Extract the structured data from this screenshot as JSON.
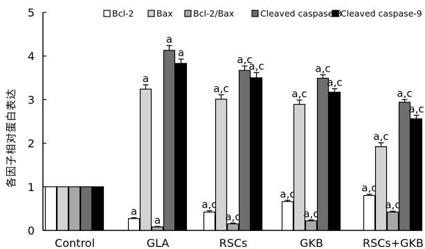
{
  "chart_data": {
    "type": "bar",
    "ylabel": "各因子相对蛋白表达",
    "ylim": [
      0,
      5
    ],
    "yticks": [
      0,
      1,
      2,
      3,
      4,
      5
    ],
    "legend_position": "top",
    "categories": [
      "Control",
      "GLA",
      "RSCs",
      "GKB",
      "RSCs+GKB"
    ],
    "series": [
      {
        "name": "Bcl-2",
        "color": "#ffffff",
        "values": [
          1,
          0.27,
          0.42,
          0.66,
          0.8
        ],
        "errors": [
          0,
          0.02,
          0.03,
          0.03,
          0.03
        ],
        "labels": [
          "",
          "a",
          "a,c",
          "a,c",
          "a,c"
        ]
      },
      {
        "name": "Bax",
        "color": "#d3d3d3",
        "values": [
          1,
          3.24,
          3.01,
          2.89,
          1.92
        ],
        "errors": [
          0,
          0.1,
          0.1,
          0.1,
          0.09
        ],
        "labels": [
          "",
          "a",
          "a,c",
          "a,c",
          "a,c"
        ]
      },
      {
        "name": "Bcl-2/Bax",
        "color": "#a9a9a9",
        "values": [
          1,
          0.08,
          0.15,
          0.22,
          0.42
        ],
        "errors": [
          0,
          0.01,
          0.02,
          0.02,
          0.02
        ],
        "labels": [
          "",
          "a",
          "a,c",
          "a,c",
          "a,c"
        ]
      },
      {
        "name": "Cleaved caspase-3",
        "color": "#6e6e6e",
        "values": [
          1,
          4.13,
          3.67,
          3.49,
          2.94
        ],
        "errors": [
          0,
          0.11,
          0.1,
          0.08,
          0.06
        ],
        "labels": [
          "",
          "a",
          "a,c",
          "a,c",
          "a,c"
        ]
      },
      {
        "name": "Cleaved caspase-9",
        "color": "#000000",
        "values": [
          1,
          3.83,
          3.5,
          3.17,
          2.56
        ],
        "errors": [
          0,
          0.1,
          0.12,
          0.08,
          0.08
        ],
        "labels": [
          "",
          "a",
          "a,c",
          "a,c",
          "a,c"
        ]
      }
    ]
  }
}
